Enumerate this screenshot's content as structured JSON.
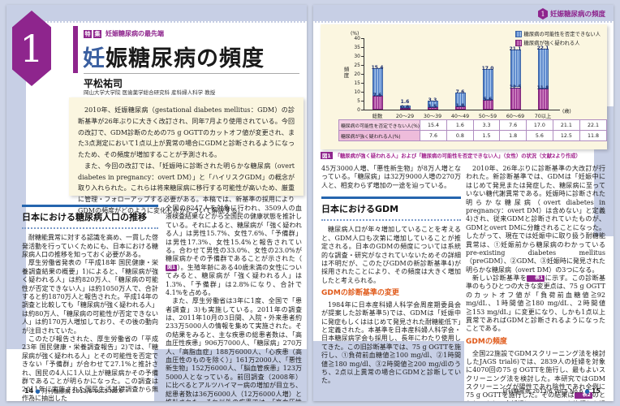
{
  "colors": {
    "purple": "#8e258d",
    "blue_rule": "#2565ae",
    "orange": "#e05a1a",
    "cream": "#fbf6e0",
    "lavender": "#c7cfe5",
    "bar_blue": "#4d7dc6",
    "bar_purple": "#9a3392",
    "caption_magenta": "#a0218c"
  },
  "left_page": {
    "issue_number": "1",
    "feature_badge": [
      "特",
      "集"
    ],
    "feature_label": "妊娠糖尿病の最先端",
    "title": {
      "first": "妊",
      "rest": "娠糖尿病の頻度"
    },
    "author": "平松祐司",
    "affiliation": "岡山大学大学院 医歯薬学総合研究科 産科婦人科学 教授",
    "abstract": {
      "p1": "2010年、妊娠糖尿病（gestational diabetes mellitus：GDM）の診断基準が26年ぶりに大きく改訂され、同年7月より使用されている。今回の改訂で、GDM診断のための75 g OGTTのカットオフ値が変更され、また3点測定において1点以上が異常の場合にGDMと診断されるようになったため、その頻度が増加することが予測される。",
      "p2": "また、今回の改訂では、「妊娠時に診断された明らかな糖尿病（overt diabetes in pregnancy：overt DM）」と「ハイリスクGDM」の概念が取り入れられた。これらは将来糖尿病に移行する可能性が高いため、厳重に管理・フォローアップする必要がある。本稿では、新基準の採用によりGDMの頻度がどのように変化したかについて解説する。"
    },
    "section1_heading": "日本における糖尿病人口の推移",
    "col1": {
      "p1": "耐糖能異常に対する認識を高め、一貫した啓発活動を行っていくためにも、日本における糖尿病人口の推移を知っておく必要がある。",
      "p2": "厚生労働省発表の「平成18年 国民健康・栄養調査結果の概要」1)によると、「糖尿病が強く疑われる人」は約820万人、「糖尿病の可能性が否定できない人」は約1050万人で、合計すると約1870万人と報告された。平成14年の調査と比較しても「糖尿病が強く疑われる人」は約80万人、「糖尿病の可能性が否定できない人」は約170万人増加しており、その後の動向が注目されていた。",
      "p3": "このたび報告された、厚生労働省の「平成23年 国民健康・栄養調査報告」2)では、「糖尿病が強く疑われる人」とその可能性を否定できない「予備群」が合わせて27.1%と推計され、国民の4人に1人以上が糖尿病かその予備群であることが明らかになった。この調査は2011年に実施された国民生活基礎調査から無作為に抽出した"
    },
    "col2": {
      "p1a": "全国の8247人を対象に行われ、3509人の血液検査結果などから全国民の健康状態を推計している。それによると、糖尿病が「強く疑われる人」は男性15.7%、女性7.6%、「予備群」は男性17.3%、女性15.4%と報告されている。合わせて男性の33.0%、女性の23.0%が糖尿病かその予備群であることが示された（",
      "p1_badge": "図1",
      "p1b": "）。生殖年齢にある40歳未満の女性についてみると、糖尿病が「強く疑われる人」は1.3%、「予備群」は2.8%になり、合計で4.1%を占める。",
      "p2": "また、厚生労働省は3年に1度、全国で「患者調査」3)も実施している。2011年の調査は、2011年10月の3日間、入院・外来患者約233万5000人の情報を集めて実施された。その結果をみると、主な疾患の総患者数は、「高血圧性疾患」906万7000人、「糖尿病」270万人、「高脂血症」188万6000人、「心疾患（高血圧性のものを除く）」161万2000人、「悪性新生物」152万6000人、「脳血管疾患」123万5000人となっている。前回調査（2008年）に比べるとアルツハイマー病の増加が目立ち、総患者数は36万6000人（12万6000人増）と推計された。それ以外の疾患では、「高血圧性疾患」が110万人増、「高脂血症」が"
    },
    "footer": {
      "page": "14",
      "dot": "●",
      "text": "月刊糖尿病 2013/6 Vol.5 No.6"
    }
  },
  "right_page": {
    "header": {
      "issue_number": "1",
      "title": "妊娠糖尿病の頻度"
    },
    "figure": {
      "caption_badge": "図1",
      "caption": "「糖尿病が強く疑われる人」および「糖尿病の可能性を否定できない人」（女性）の状況（文献2より作成）"
    },
    "col1": {
      "p1": "45万3000人増、「悪性新生物」が8万人増となっている。「糖尿病」は32万9000人増の270万人と、相変わらず増加の一途を辿っている。",
      "section_heading": "日本におけるGDM",
      "p2": "糖尿病人口が年々増加していることを考えると、GDM人口も次第に増加していることが推定される。日本のGDMの頻度については系統的な調査・研究がなされていないためその詳細は不明だが、このたびGDMの新診断基準4)が採用されたことにより、その頻度は大きく増加したと考えられる。",
      "sub_heading": "GDMの診断基準の変更",
      "p3": "1984年に日本産科婦人科学会周産期委員会が提案した診断基準5)では、GDMは「妊娠中に発症もしくははじめて発見された耐糖能低下」と定義された。本基準を日本産科婦人科学会・日本糖尿病学会も採用し、長年にわたり使用してきた。この旧診断基準では、75 g OGTTを施行し、①負荷前血糖値≧100 mg/dl、②1時間値≧180 mg/dl、③2時間値≧200 mg/dlのうち、2点以上異常の場合にGDMと診断していた。"
    },
    "col2": {
      "p1": "2010年、26年ぶりに診断基準の大改訂が行われた。新診断基準では、GDMは「妊娠中にはじめて発見または発症した、糖尿病に至っていない糖代謝異常である。妊娠時に診断された明らかな糖尿病（overt diabetes in pregnancy：overt DM）は含めない」と定義4)され、従来GDMと診断されていたものが、GDMとovert DMに分離されることになった。したがって、現在では妊娠中に取り扱う耐糖能異常は、①妊娠前から糖尿病のわかっているpre-existing diabetes mellitus（preGDM）、②GDM、③妊娠時に発見された明らかな糖尿病（overt DM）の3つになる。",
      "p2a": "新しい診断基準を",
      "p2_badge": "表1",
      "p2b": "に示す。この診断基準のもうひとつの大きな変更点は、75 g OGTTのカットオフ値が「負荷前血糖値≧92 mg/dL、1時間値≧180 mg/dL、2時間値≧153 mg/dL」に変更になり、しかも1点以上異常であればGDMと診断されるようになったことである。",
      "sub_heading": "GDMの頻度",
      "p3a": "全国22施設でGDMスクリーニング法を検討したJAGS trial6)では、2839人の妊婦を対象に4070回の75 g OGTTを施行し、最もよいスクリーニング法を検討した。本研究ではGDMスクリーニングが陽性であれ陰性であれ全例に75 g OGTTを施行した。その結果は",
      "p3_badge": "表2",
      "p3b": "のとおりであり、全妊婦に75 g OGTTを施行した場合、旧診"
    },
    "footer": {
      "text": "月刊糖尿病 2013/6 Vol.5 No.6",
      "dot": "●",
      "page": "15"
    }
  },
  "chart_data": {
    "type": "bar",
    "stacked": true,
    "categories": [
      "総数",
      "20～29",
      "30～39",
      "40～49",
      "50～59",
      "60～69",
      "70以上"
    ],
    "x_unit": "(歳)",
    "series": [
      {
        "name": "糖尿病の可能性を否定できない人",
        "values": [
          15.4,
          1.6,
          3.3,
          7.6,
          17.0,
          21.1,
          22.1
        ],
        "style": "blue-striped"
      },
      {
        "name": "糖尿病が強く疑われる人",
        "values": [
          7.6,
          0.8,
          1.5,
          1.8,
          5.6,
          12.5,
          11.8
        ],
        "style": "purple-striped"
      }
    ],
    "ylabel": "頻度",
    "y_unit": "(%)",
    "ylim": [
      0,
      40
    ],
    "ytick_step": 5,
    "grid": false,
    "legend_position": "top-right",
    "table_row_labels": [
      "糖尿病の可能性を否定できない人(%)",
      "糖尿病が強く疑われる人(%)"
    ]
  }
}
